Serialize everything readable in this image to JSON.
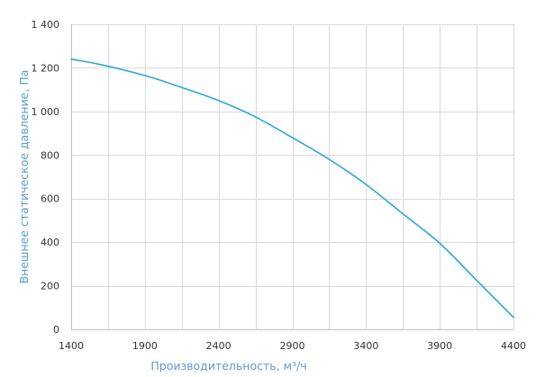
{
  "chart_data": {
    "type": "line",
    "title": "",
    "xlabel": "Производительность, м³/ч",
    "ylabel": "Внешнее статическое давление, Па",
    "xlim": [
      1400,
      4400
    ],
    "ylim": [
      0,
      1400
    ],
    "x_ticks": [
      1400,
      1900,
      2400,
      2900,
      3400,
      3900,
      4400
    ],
    "x_tick_labels": [
      "1400",
      "1900",
      "2400",
      "2900",
      "3400",
      "3900",
      "4400"
    ],
    "y_ticks": [
      0,
      200,
      400,
      600,
      800,
      1000,
      1200,
      1400
    ],
    "y_tick_labels": [
      "0",
      "200",
      "400",
      "600",
      "800",
      "1 000",
      "1 200",
      "1 400"
    ],
    "grid": true,
    "x_minor_grid_step": 250,
    "series": [
      {
        "color": "#2aa7d9",
        "x": [
          1400,
          1600,
          1900,
          2150,
          2400,
          2650,
          2900,
          3150,
          3400,
          3650,
          3900,
          4150,
          4400
        ],
        "y": [
          1240,
          1215,
          1165,
          1110,
          1050,
          975,
          880,
          780,
          665,
          530,
          395,
          225,
          55
        ]
      }
    ]
  }
}
